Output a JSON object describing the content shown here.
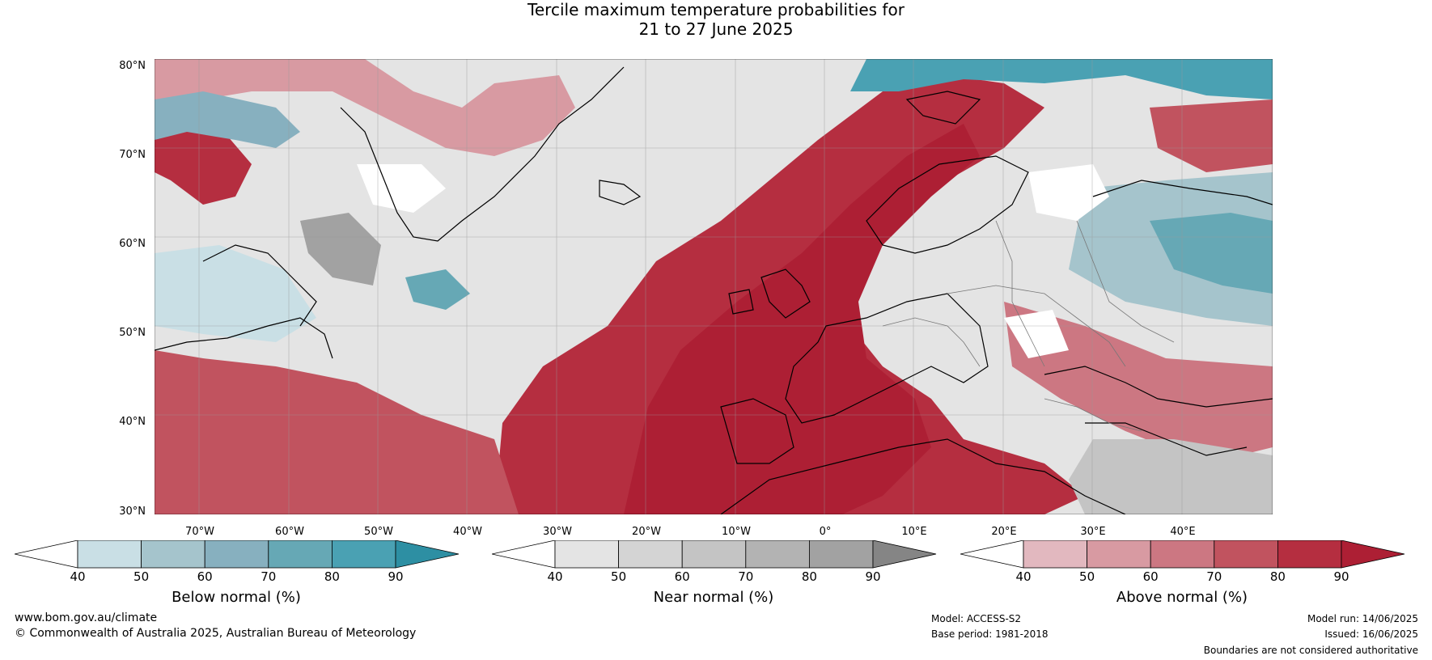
{
  "title": {
    "line1": "Tercile maximum temperature probabilities for",
    "line2": "21 to 27 June 2025"
  },
  "map": {
    "lat_labels": [
      "80°N",
      "70°N",
      "60°N",
      "50°N",
      "40°N",
      "30°N"
    ],
    "lon_labels": [
      "70°W",
      "60°W",
      "50°W",
      "40°W",
      "30°W",
      "20°W",
      "10°W",
      "0°",
      "10°E",
      "20°E",
      "30°E",
      "40°E"
    ]
  },
  "colorbars": [
    {
      "label": "Below normal (%)",
      "ticks": [
        "40",
        "50",
        "60",
        "70",
        "80",
        "90"
      ],
      "colors": [
        "#ffffff",
        "#c9dfe5",
        "#a5c4cc",
        "#87b0bf",
        "#66a8b5",
        "#4aa1b3",
        "#2d8fa3"
      ]
    },
    {
      "label": "Near normal (%)",
      "ticks": [
        "40",
        "50",
        "60",
        "70",
        "80",
        "90"
      ],
      "colors": [
        "#ffffff",
        "#e4e4e4",
        "#d4d4d4",
        "#c4c4c4",
        "#b3b3b3",
        "#a2a2a2",
        "#858585"
      ]
    },
    {
      "label": "Above normal (%)",
      "ticks": [
        "40",
        "50",
        "60",
        "70",
        "80",
        "90"
      ],
      "colors": [
        "#ffffff",
        "#e2b8bf",
        "#d89aa2",
        "#cc7782",
        "#c1535f",
        "#b52e40",
        "#ad1f34"
      ]
    }
  ],
  "footer": {
    "website": "www.bom.gov.au/climate",
    "copyright": "© Commonwealth of Australia 2025, Australian Bureau of Meteorology",
    "model": "Model: ACCESS-S2",
    "base_period": "Base period: 1981-2018",
    "model_run": "Model run: 14/06/2025",
    "issued": "Issued: 16/06/2025",
    "disclaimer": "Boundaries are not considered authoritative"
  }
}
